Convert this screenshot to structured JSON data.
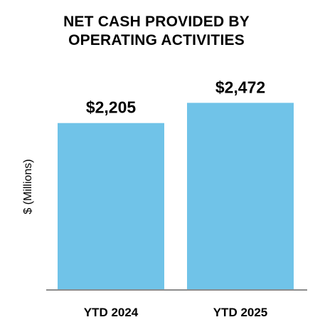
{
  "chart_data": {
    "type": "bar",
    "title": "NET CASH PROVIDED BY\nOPERATING ACTIVITIES",
    "ylabel": "$ (Millions)",
    "xlabel": "",
    "categories": [
      "YTD 2024",
      "YTD 2025"
    ],
    "values": [
      2205,
      2472
    ],
    "data_labels": [
      "$2,205",
      "$2,472"
    ],
    "ylim": [
      0,
      2720
    ],
    "grid": false,
    "bar_color": "#70C3E8",
    "axis_color": "#8C8C8C"
  }
}
